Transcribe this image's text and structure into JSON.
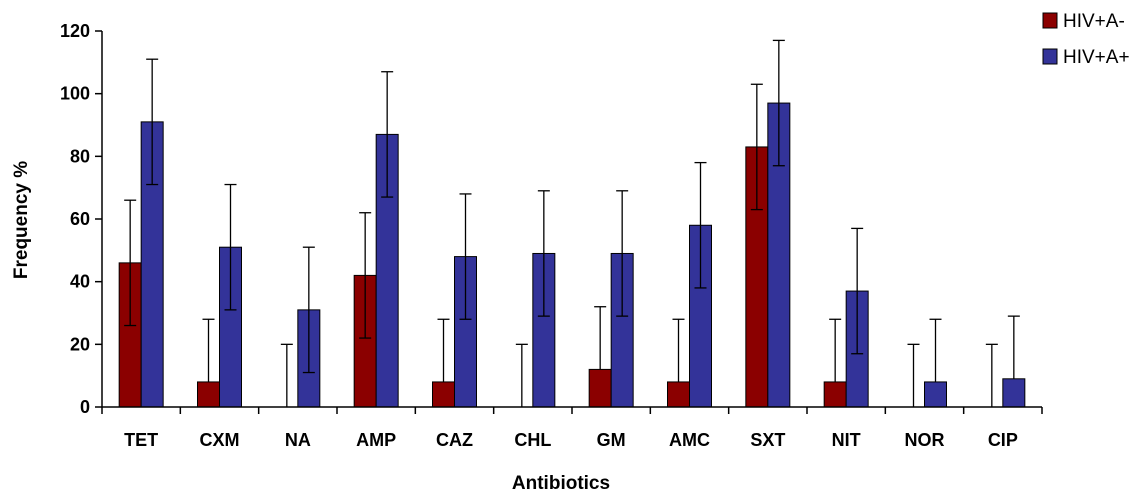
{
  "chart_data": {
    "type": "bar",
    "xlabel": "Antibiotics",
    "ylabel": "Frequency %",
    "ylim": [
      0,
      120
    ],
    "yticks": [
      0,
      20,
      40,
      60,
      80,
      100,
      120
    ],
    "grid": false,
    "legend_position": "top-right",
    "error_bars": true,
    "categories": [
      "TET",
      "CXM",
      "NA",
      "AMP",
      "CAZ",
      "CHL",
      "GM",
      "AMC",
      "SXT",
      "NIT",
      "NOR",
      "CIP"
    ],
    "series": [
      {
        "name": "HIV+A-",
        "color": "#8b0000",
        "values": [
          46,
          8,
          0,
          42,
          8,
          0,
          12,
          8,
          83,
          8,
          0,
          0
        ],
        "error_high": [
          66,
          28,
          20,
          62,
          28,
          20,
          32,
          28,
          103,
          28,
          20,
          20
        ],
        "error_low": [
          26,
          null,
          null,
          22,
          null,
          null,
          null,
          null,
          63,
          null,
          null,
          null
        ]
      },
      {
        "name": "HIV+A+",
        "color": "#333399",
        "values": [
          91,
          51,
          31,
          87,
          48,
          49,
          49,
          58,
          97,
          37,
          8,
          9
        ],
        "error_high": [
          111,
          71,
          51,
          107,
          68,
          69,
          69,
          78,
          117,
          57,
          28,
          29
        ],
        "error_low": [
          71,
          31,
          11,
          67,
          28,
          29,
          29,
          38,
          77,
          17,
          null,
          null
        ]
      }
    ]
  }
}
